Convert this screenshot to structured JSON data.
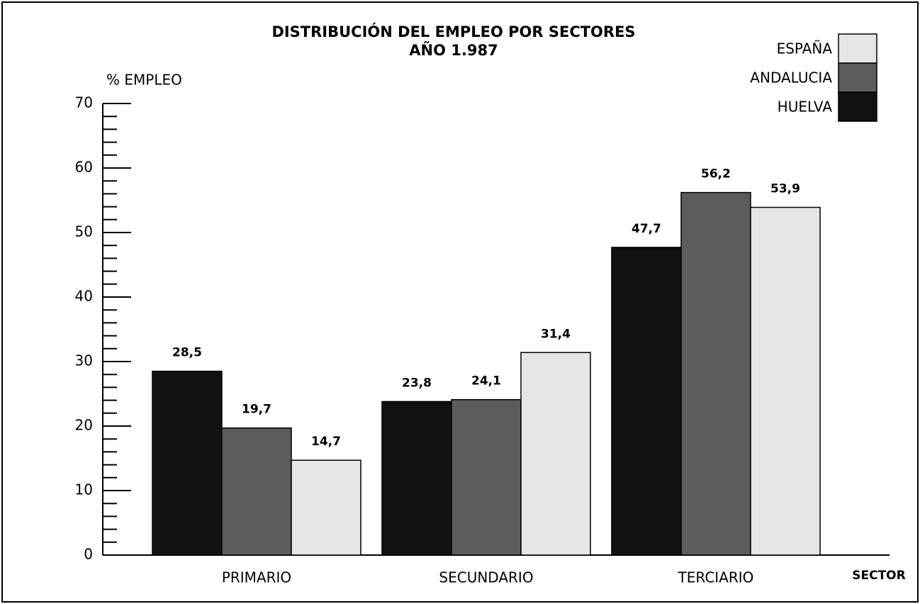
{
  "chart_data": {
    "type": "bar",
    "title": "DISTRIBUCIÓN DEL EMPLEO POR SECTORES",
    "subtitle": "AÑO 1.987",
    "y_label": "% EMPLEO",
    "x_label": "SECTOR",
    "categories": [
      "PRIMARIO",
      "SECUNDARIO",
      "TERCIARIO"
    ],
    "series": [
      {
        "name": "HUELVA",
        "color": "#111111",
        "values": [
          28.5,
          23.8,
          47.7
        ],
        "value_labels": [
          "28,5",
          "23,8",
          "47,7"
        ]
      },
      {
        "name": "ANDALUCIA",
        "color": "#5c5c5c",
        "values": [
          19.7,
          24.1,
          56.2
        ],
        "value_labels": [
          "19,7",
          "24,1",
          "56,2"
        ]
      },
      {
        "name": "ESPAÑA",
        "color": "#e6e6e6",
        "values": [
          14.7,
          31.4,
          53.9
        ],
        "value_labels": [
          "14,7",
          "31,4",
          "53,9"
        ]
      }
    ],
    "ylim": [
      0,
      70
    ],
    "yticks": [
      0,
      10,
      20,
      30,
      40,
      50,
      60,
      70
    ],
    "yticks_minor": [
      2,
      4,
      6,
      8,
      12,
      14,
      16,
      18,
      22,
      24,
      26,
      28,
      32,
      34,
      36,
      38,
      42,
      44,
      46,
      48,
      52,
      54,
      56,
      58,
      62,
      64,
      66,
      68
    ],
    "legend": "top-right"
  }
}
